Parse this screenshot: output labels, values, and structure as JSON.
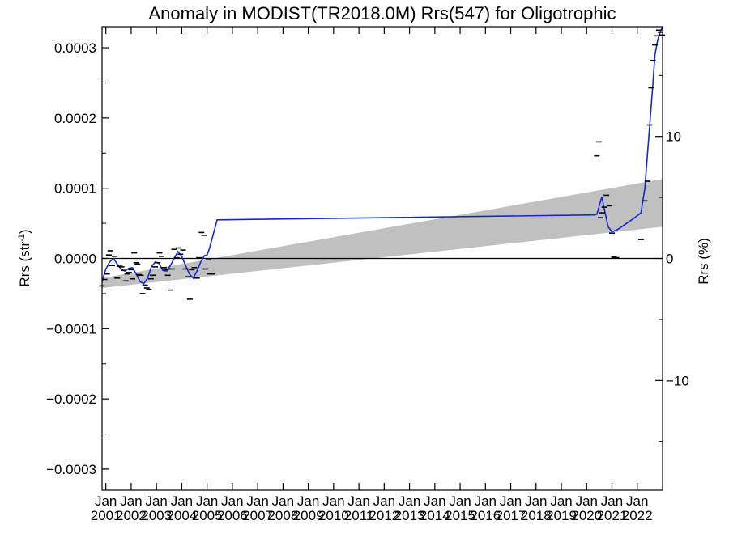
{
  "chart_data": {
    "type": "line",
    "title": "Anomaly in MODIST(TR2018.0M) Rrs(547) for Oligotrophic",
    "ylabel": "Rrs (str",
    "ylabel_sup": "-1",
    "ylabel_close": ")",
    "y2label": "Rrs (%)",
    "xlim": [
      2000.85,
      2023.0
    ],
    "ylim": [
      -0.00033,
      0.00033
    ],
    "y2lim": [
      -19.0,
      19.0
    ],
    "yticks": [
      {
        "v": 0.0003,
        "label": "0.0003"
      },
      {
        "v": 0.0002,
        "label": "0.0002"
      },
      {
        "v": 0.0001,
        "label": "0.0001"
      },
      {
        "v": 0.0,
        "label": "0.0000"
      },
      {
        "v": -0.0001,
        "label": "−0.0001"
      },
      {
        "v": -0.0002,
        "label": "−0.0002"
      },
      {
        "v": -0.0003,
        "label": "−0.0003"
      }
    ],
    "y2ticks": [
      {
        "v": 10,
        "label": "10"
      },
      {
        "v": 0,
        "label": "0"
      },
      {
        "v": -10,
        "label": "−10"
      }
    ],
    "xticks": [
      {
        "v": 2001,
        "top": "Jan",
        "bottom": "2001"
      },
      {
        "v": 2002,
        "top": "Jan",
        "bottom": "2002"
      },
      {
        "v": 2003,
        "top": "Jan",
        "bottom": "2003"
      },
      {
        "v": 2004,
        "top": "Jan",
        "bottom": "2004"
      },
      {
        "v": 2005,
        "top": "Jan",
        "bottom": "2005"
      },
      {
        "v": 2006,
        "top": "Jan",
        "bottom": "2006"
      },
      {
        "v": 2007,
        "top": "Jan",
        "bottom": "2007"
      },
      {
        "v": 2008,
        "top": "Jan",
        "bottom": "2008"
      },
      {
        "v": 2009,
        "top": "Jan",
        "bottom": "2009"
      },
      {
        "v": 2010,
        "top": "Jan",
        "bottom": "2010"
      },
      {
        "v": 2011,
        "top": "Jan",
        "bottom": "2011"
      },
      {
        "v": 2012,
        "top": "Jan",
        "bottom": "2012"
      },
      {
        "v": 2013,
        "top": "Jan",
        "bottom": "2013"
      },
      {
        "v": 2014,
        "top": "Jan",
        "bottom": "2014"
      },
      {
        "v": 2015,
        "top": "Jan",
        "bottom": "2015"
      },
      {
        "v": 2016,
        "top": "Jan",
        "bottom": "2016"
      },
      {
        "v": 2017,
        "top": "Jan",
        "bottom": "2017"
      },
      {
        "v": 2018,
        "top": "Jan",
        "bottom": "2018"
      },
      {
        "v": 2019,
        "top": "Jan",
        "bottom": "2019"
      },
      {
        "v": 2020,
        "top": "Jan",
        "bottom": "2020"
      },
      {
        "v": 2021,
        "top": "Jan",
        "bottom": "2021"
      },
      {
        "v": 2022,
        "top": "Jan",
        "bottom": "2022"
      }
    ],
    "trend_band": {
      "x": [
        2000.85,
        2023.0
      ],
      "upper": [
        -2.8e-05,
        0.000113
      ],
      "lower": [
        -4.2e-05,
        4.5e-05
      ]
    },
    "smoothed_line": {
      "x": [
        2000.85,
        2001.0,
        2001.15,
        2001.3,
        2001.45,
        2001.6,
        2001.75,
        2001.9,
        2002.05,
        2002.2,
        2002.35,
        2002.5,
        2002.65,
        2002.8,
        2002.95,
        2003.1,
        2003.25,
        2003.4,
        2003.55,
        2003.7,
        2003.85,
        2004.0,
        2004.15,
        2004.3,
        2004.45,
        2004.6,
        2004.75,
        2004.9,
        2005.0,
        2005.1,
        2005.4,
        2020.3,
        2020.4,
        2020.5,
        2020.6,
        2020.7,
        2020.85,
        2021.0,
        2021.15,
        2021.3,
        2021.5,
        2021.7,
        2021.9,
        2022.15,
        2022.3,
        2022.45,
        2022.6,
        2022.7,
        2022.8,
        2022.9,
        2023.0
      ],
      "y": [
        -3.3e-05,
        -1.5e-05,
        -5e-06,
        0.0,
        -8e-06,
        -1.5e-05,
        -1.8e-05,
        -1.4e-05,
        -1.3e-05,
        -2.2e-05,
        -3.3e-05,
        -3.6e-05,
        -2.8e-05,
        -1.2e-05,
        -5e-06,
        -7e-06,
        -1.7e-05,
        -1.8e-05,
        -1e-05,
        0.0,
        1e-05,
        3e-06,
        -1e-05,
        -2.2e-05,
        -2.8e-05,
        -1.8e-05,
        -5e-06,
        4e-06,
        5e-06,
        1.5e-05,
        5.5e-05,
        6.2e-05,
        6.3e-05,
        7.5e-05,
        8.8e-05,
        7e-05,
        4.5e-05,
        3.8e-05,
        4e-05,
        4.3e-05,
        4.8e-05,
        5.3e-05,
        5.8e-05,
        6.5e-05,
        0.0001,
        0.00017,
        0.00024,
        0.00029,
        0.00031,
        0.000322,
        0.00033
      ]
    },
    "points": {
      "x": [
        2000.85,
        2000.95,
        2001.05,
        2001.12,
        2001.18,
        2001.25,
        2001.35,
        2001.45,
        2001.55,
        2001.62,
        2001.7,
        2001.78,
        2001.85,
        2001.92,
        2002.0,
        2002.05,
        2002.12,
        2002.2,
        2002.25,
        2002.3,
        2002.38,
        2002.45,
        2002.55,
        2002.62,
        2002.7,
        2002.78,
        2002.85,
        2002.95,
        2003.05,
        2003.12,
        2003.2,
        2003.3,
        2003.38,
        2003.45,
        2003.55,
        2003.62,
        2003.7,
        2003.8,
        2003.88,
        2003.95,
        2004.05,
        2004.15,
        2004.25,
        2004.32,
        2004.4,
        2004.5,
        2004.6,
        2004.68,
        2004.78,
        2004.88,
        2004.95,
        2005.05,
        2005.12,
        2005.2,
        2020.4,
        2020.48,
        2020.55,
        2020.62,
        2020.7,
        2020.78,
        2020.9,
        2021.0,
        2021.08,
        2021.12,
        2021.18,
        2022.15,
        2022.3,
        2022.4,
        2022.48,
        2022.55,
        2022.62,
        2022.7,
        2022.78,
        2022.85,
        2022.92,
        2022.98
      ],
      "y": [
        -3.9e-05,
        -3e-05,
        -2.2e-05,
        5e-06,
        1.1e-05,
        -1e-05,
        3e-06,
        -2.8e-05,
        -1.1e-05,
        -1.2e-05,
        -1.7e-05,
        -3.2e-05,
        -2.2e-05,
        -2e-05,
        -1.6e-05,
        -2.9e-05,
        8e-06,
        -6e-06,
        -8e-06,
        -2.3e-05,
        -2.4e-05,
        -5e-05,
        -3.8e-05,
        -4.2e-05,
        -4.4e-05,
        -2.9e-05,
        -2.4e-05,
        -1.2e-05,
        -6e-06,
        8e-06,
        3e-06,
        -1.3e-05,
        -1.6e-05,
        -2.4e-05,
        -4.5e-05,
        -1.5e-05,
        1.3e-05,
        1e-06,
        1.5e-05,
        6e-06,
        1.2e-05,
        -1.5e-05,
        -2.6e-05,
        -5.8e-05,
        -1.6e-05,
        -1.3e-05,
        -2.8e-05,
        1e-06,
        3.7e-05,
        3.3e-05,
        -1.5e-05,
        -2e-06,
        -2.2e-05,
        -2.2e-05,
        0.000146,
        0.000166,
        5.8e-05,
        6.5e-05,
        7.3e-05,
        9e-05,
        7.5e-05,
        3.6e-05,
        2e-06,
        1e-06,
        1e-06,
        2.7e-05,
        8.2e-05,
        0.00011,
        0.00019,
        0.000243,
        0.000282,
        0.000304,
        0.000317,
        0.000325,
        0.000322,
        0.000318
      ]
    }
  }
}
